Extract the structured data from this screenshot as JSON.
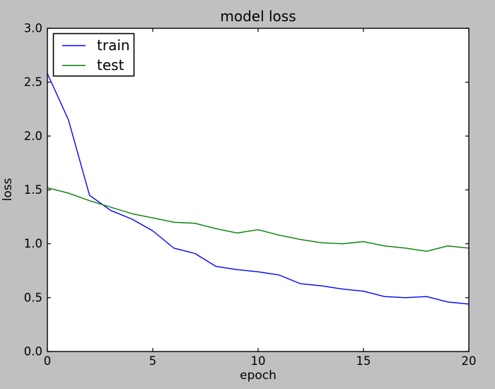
{
  "chart_data": {
    "type": "line",
    "title": "model loss",
    "xlabel": "epoch",
    "ylabel": "loss",
    "xlim": [
      0,
      20
    ],
    "ylim": [
      0.0,
      3.0
    ],
    "grid": false,
    "legend": {
      "position": "upper left"
    },
    "x_ticks": [
      {
        "v": 0,
        "label": "0"
      },
      {
        "v": 5,
        "label": "5"
      },
      {
        "v": 10,
        "label": "10"
      },
      {
        "v": 15,
        "label": "15"
      },
      {
        "v": 20,
        "label": "20"
      }
    ],
    "y_ticks": [
      {
        "v": 0.0,
        "label": "0.0"
      },
      {
        "v": 0.5,
        "label": "0.5"
      },
      {
        "v": 1.0,
        "label": "1.0"
      },
      {
        "v": 1.5,
        "label": "1.5"
      },
      {
        "v": 2.0,
        "label": "2.0"
      },
      {
        "v": 2.5,
        "label": "2.5"
      },
      {
        "v": 3.0,
        "label": "3.0"
      }
    ],
    "x": [
      0,
      1,
      2,
      3,
      4,
      5,
      6,
      7,
      8,
      9,
      10,
      11,
      12,
      13,
      14,
      15,
      16,
      17,
      18,
      19,
      20
    ],
    "series": [
      {
        "name": "train",
        "color": "#0000ff",
        "values": [
          2.58,
          2.15,
          1.45,
          1.31,
          1.23,
          1.12,
          0.96,
          0.91,
          0.79,
          0.76,
          0.74,
          0.71,
          0.63,
          0.61,
          0.58,
          0.56,
          0.51,
          0.5,
          0.51,
          0.46,
          0.44
        ]
      },
      {
        "name": "test",
        "color": "#007f00",
        "values": [
          1.52,
          1.47,
          1.4,
          1.34,
          1.28,
          1.24,
          1.2,
          1.19,
          1.14,
          1.1,
          1.13,
          1.08,
          1.04,
          1.01,
          1.0,
          1.02,
          0.98,
          0.96,
          0.93,
          0.98,
          0.96
        ]
      }
    ],
    "colors": {
      "figure_bg": "#c0c0c0",
      "plot_bg": "#ffffff",
      "axis": "#000000"
    }
  }
}
